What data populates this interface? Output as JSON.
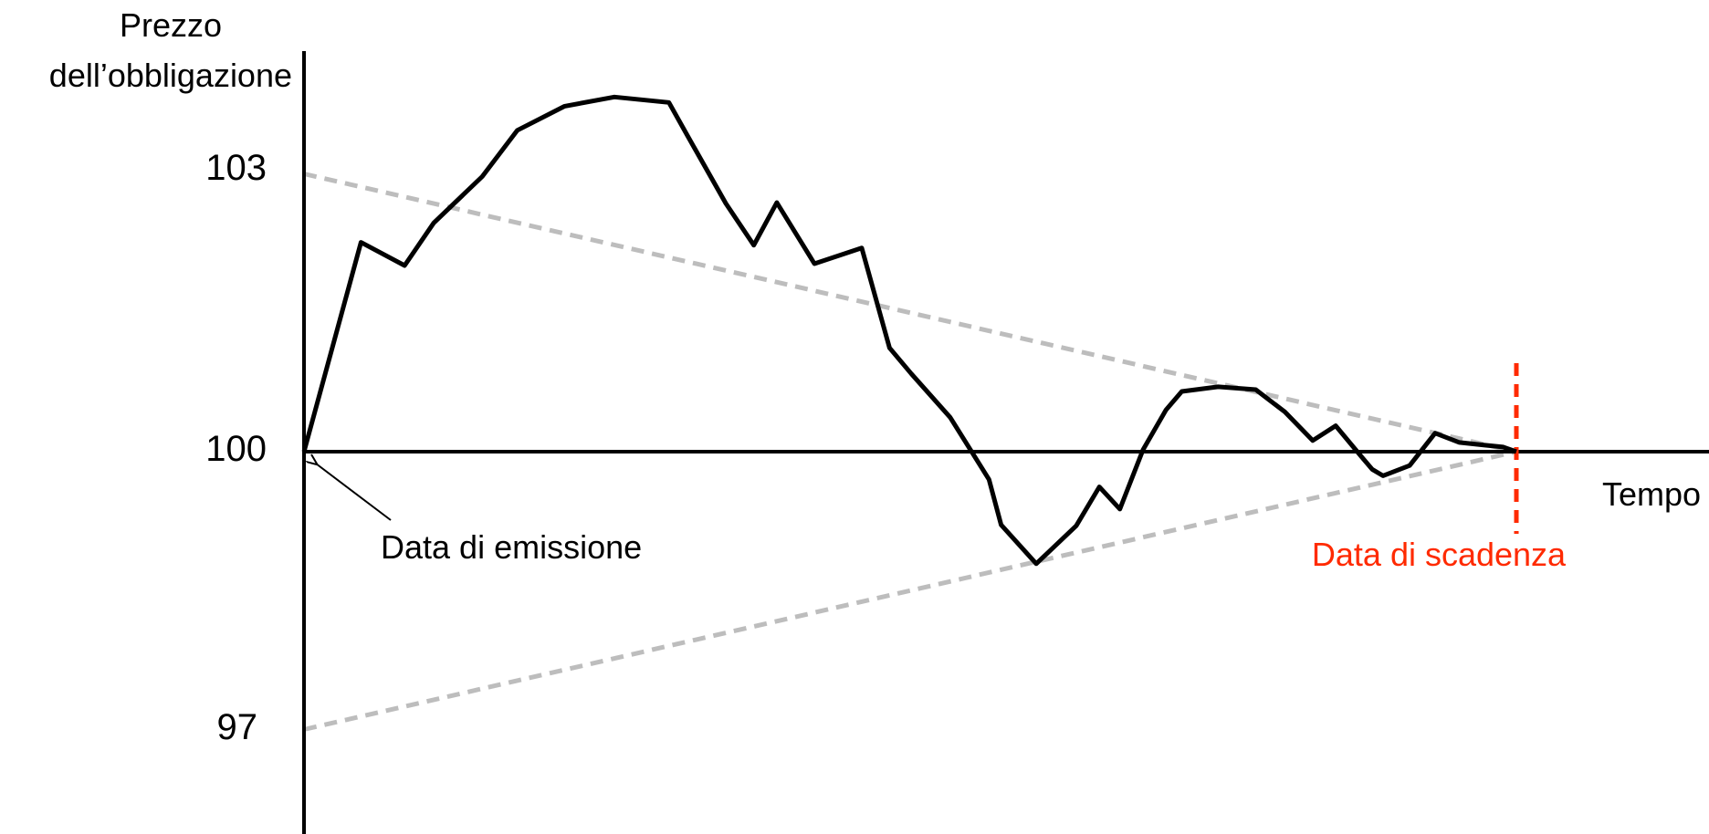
{
  "chart_data": {
    "type": "line",
    "ylabel_lines": [
      "Prezzo",
      "dell’obbligazione"
    ],
    "xlabel": "Tempo",
    "yticks": [
      {
        "value": 103,
        "label": "103"
      },
      {
        "value": 100,
        "label": "100"
      },
      {
        "value": 97,
        "label": "97"
      }
    ],
    "ylim": [
      95.9,
      104.7
    ],
    "xlim": [
      0,
      100
    ],
    "grid": false,
    "baseline": 100,
    "series": [
      {
        "color": "#000000",
        "style": "solid",
        "x": [
          0,
          4.7,
          8.3,
          10.7,
          14.7,
          17.6,
          21.5,
          25.6,
          30.1,
          31.6,
          34.8,
          37.1,
          39.0,
          42.1,
          46.0,
          48.3,
          50.1,
          53.3,
          56.5,
          57.5,
          60.4,
          63.7,
          65.6,
          67.3,
          69.2,
          71.1,
          72.4,
          75.4,
          78.5,
          80.9,
          83.2,
          85.1,
          87.2,
          88.1,
          89.0,
          91.2,
          93.3,
          95.3,
          97.4,
          98.9,
          100
        ],
        "y": [
          100,
          102.26,
          102.01,
          102.47,
          102.97,
          103.47,
          103.73,
          103.83,
          103.77,
          103.42,
          102.68,
          102.23,
          102.69,
          102.03,
          102.2,
          101.12,
          100.84,
          100.37,
          99.7,
          99.21,
          98.79,
          99.2,
          99.62,
          99.38,
          100.02,
          100.45,
          100.65,
          100.7,
          100.67,
          100.43,
          100.12,
          100.28,
          99.95,
          99.81,
          99.74,
          99.85,
          100.2,
          100.1,
          100.07,
          100.05,
          100.0
        ]
      },
      {
        "color": "#bdbdbd",
        "style": "dashed",
        "x": [
          0,
          100
        ],
        "y": [
          103,
          100
        ]
      },
      {
        "color": "#bdbdbd",
        "style": "dashed",
        "x": [
          0,
          100
        ],
        "y": [
          97,
          100
        ]
      }
    ],
    "annotations": [
      {
        "text": "Data di emissione",
        "color": "#000000",
        "x": 0,
        "y": 100
      },
      {
        "text": "Data di scadenza",
        "color": "#ff2a00",
        "x": 100,
        "y": 100
      }
    ],
    "colors": {
      "axis": "#000000",
      "price_line": "#000000",
      "bounds": "#bdbdbd",
      "maturity": "#ff2a00"
    }
  }
}
